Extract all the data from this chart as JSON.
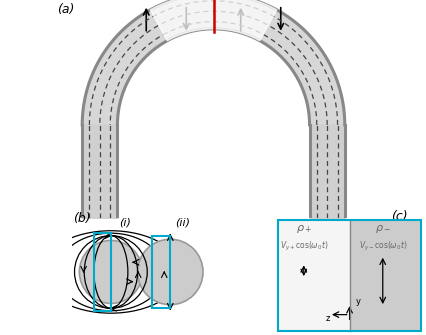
{
  "panel_a_label": "(a)",
  "panel_b_label": "(b)",
  "panel_c_label": "(c)",
  "sub_i_label": "(i)",
  "sub_ii_label": "(ii)",
  "bg_color": "#ffffff",
  "tube_outer_color": "#888888",
  "tube_fill_color": "#d0d0d0",
  "dashed_color": "#444444",
  "red_line_color": "#cc0000",
  "arrow_color": "#000000",
  "cyan_box_color": "#00aacc",
  "circle_fill": "#cccccc",
  "panel_c_left_fill": "#f5f5f5",
  "panel_c_right_fill": "#cccccc",
  "text_color": "#333333"
}
